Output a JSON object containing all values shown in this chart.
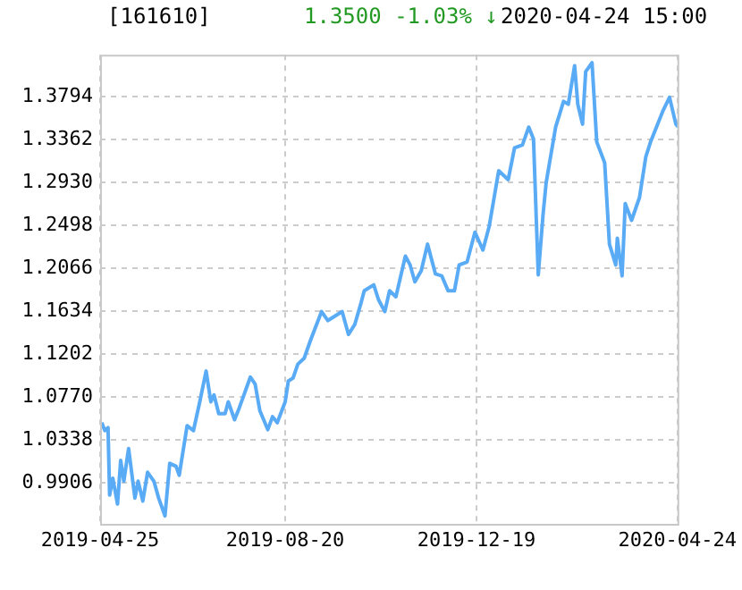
{
  "chart_data": {
    "type": "line",
    "title": "[161610]",
    "annotations": [
      "1.3500  -1.03% ↓",
      "2020-04-24 15:00"
    ],
    "xlim": [
      "2019-04-25",
      "2020-04-24"
    ],
    "xticks": [
      "2019-04-25",
      "2019-08-20",
      "2019-12-19",
      "2020-04-24"
    ],
    "ylim": [
      0.949,
      1.422
    ],
    "yticks": [
      0.9906,
      1.0338,
      {
        "value": 1.077,
        "label": "1.0770"
      },
      1.1202,
      1.1634,
      1.2066,
      1.2498,
      {
        "value": 1.293,
        "label": "1.2930"
      },
      1.3362,
      1.3794
    ],
    "grid": true,
    "marker": "none",
    "series": [
      {
        "color": "#5aabf5",
        "x": [
          "2019-04-26",
          "2019-04-28",
          "2019-04-30",
          "2019-05-01",
          "2019-05-03",
          "2019-05-06",
          "2019-05-08",
          "2019-05-10",
          "2019-05-13",
          "2019-05-17",
          "2019-05-19",
          "2019-05-22",
          "2019-05-25",
          "2019-05-29",
          "2019-06-01",
          "2019-06-05",
          "2019-06-08",
          "2019-06-12",
          "2019-06-14",
          "2019-06-19",
          "2019-06-23",
          "2019-06-27",
          "2019-07-01",
          "2019-07-04",
          "2019-07-06",
          "2019-07-09",
          "2019-07-13",
          "2019-07-15",
          "2019-07-19",
          "2019-07-22",
          "2019-07-29",
          "2019-08-01",
          "2019-08-04",
          "2019-08-09",
          "2019-08-12",
          "2019-08-15",
          "2019-08-20",
          "2019-08-22",
          "2019-08-25",
          "2019-08-28",
          "2019-09-01",
          "2019-09-05",
          "2019-09-12",
          "2019-09-16",
          "2019-09-19",
          "2019-09-25",
          "2019-09-29",
          "2019-10-03",
          "2019-10-07",
          "2019-10-09",
          "2019-10-15",
          "2019-10-18",
          "2019-10-22",
          "2019-10-25",
          "2019-10-29",
          "2019-11-04",
          "2019-11-07",
          "2019-11-10",
          "2019-11-14",
          "2019-11-18",
          "2019-11-23",
          "2019-11-27",
          "2019-12-01",
          "2019-12-05",
          "2019-12-08",
          "2019-12-13",
          "2019-12-18",
          "2019-12-23",
          "2019-12-27",
          "2020-01-02",
          "2020-01-08",
          "2020-01-12",
          "2020-01-17",
          "2020-01-21",
          "2020-01-24",
          "2020-01-27",
          "2020-01-30",
          "2020-02-01",
          "2020-02-07",
          "2020-02-12",
          "2020-02-15",
          "2020-02-19",
          "2020-02-21",
          "2020-02-24",
          "2020-02-26",
          "2020-03-01",
          "2020-03-04",
          "2020-03-09",
          "2020-03-12",
          "2020-03-16",
          "2020-03-17",
          "2020-03-20",
          "2020-03-22",
          "2020-03-26",
          "2020-03-31",
          "2020-04-04",
          "2020-04-07",
          "2020-04-10",
          "2020-04-15",
          "2020-04-19",
          "2020-04-23",
          "2020-04-24"
        ],
        "values": [
          1.051,
          1.043,
          1.046,
          0.978,
          0.995,
          0.969,
          1.013,
          0.992,
          1.025,
          0.975,
          0.992,
          0.972,
          1.001,
          0.992,
          0.975,
          0.957,
          1.01,
          1.007,
          0.998,
          1.048,
          1.043,
          1.072,
          1.103,
          1.072,
          1.079,
          1.06,
          1.06,
          1.072,
          1.054,
          1.066,
          1.097,
          1.09,
          1.063,
          1.044,
          1.057,
          1.051,
          1.072,
          1.093,
          1.096,
          1.11,
          1.116,
          1.134,
          1.163,
          1.154,
          1.157,
          1.163,
          1.14,
          1.15,
          1.172,
          1.184,
          1.19,
          1.175,
          1.163,
          1.184,
          1.178,
          1.219,
          1.21,
          1.193,
          1.204,
          1.231,
          1.201,
          1.199,
          1.184,
          1.184,
          1.21,
          1.213,
          1.243,
          1.225,
          1.249,
          1.305,
          1.296,
          1.328,
          1.331,
          1.349,
          1.337,
          1.2,
          1.26,
          1.293,
          1.349,
          1.375,
          1.372,
          1.411,
          1.372,
          1.352,
          1.405,
          1.414,
          1.334,
          1.313,
          1.231,
          1.21,
          1.237,
          1.199,
          1.272,
          1.255,
          1.278,
          1.319,
          1.334,
          1.346,
          1.366,
          1.379,
          1.352,
          1.35
        ]
      }
    ]
  }
}
